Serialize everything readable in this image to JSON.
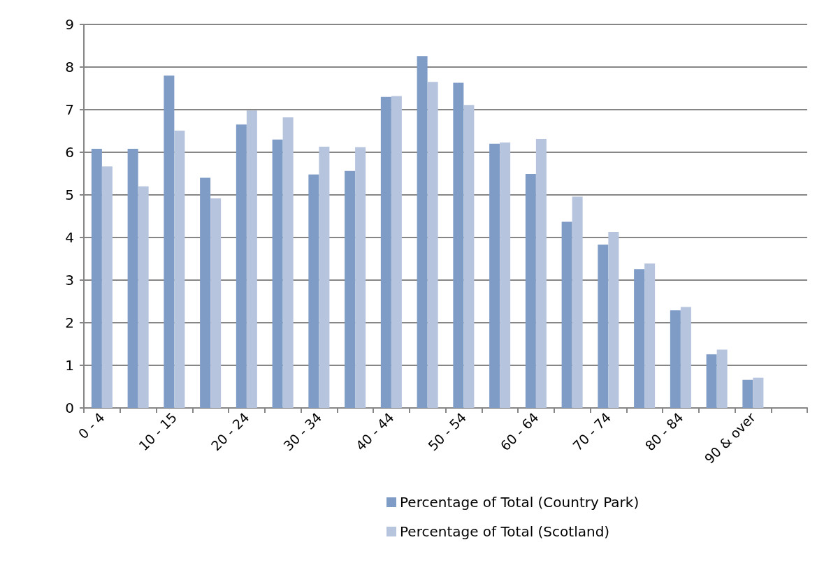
{
  "chart_data": {
    "type": "bar",
    "categories": [
      "0 - 4",
      null,
      "10 - 15",
      null,
      "20 - 24",
      null,
      "30 - 34",
      null,
      "40 - 44",
      null,
      "50 - 54",
      null,
      "60 - 64",
      null,
      "70 - 74",
      null,
      "80 - 84",
      null,
      "90 & over",
      null
    ],
    "series": [
      {
        "name": "Percentage of Total (Country Park)",
        "color": "#7f9cc7",
        "values": [
          6.08,
          6.08,
          7.8,
          5.4,
          6.65,
          6.3,
          5.48,
          5.56,
          7.3,
          8.26,
          7.63,
          6.2,
          5.49,
          4.37,
          3.83,
          3.26,
          2.29,
          1.26,
          0.66,
          null
        ]
      },
      {
        "name": "Percentage of Total (Scotland)",
        "color": "#b6c4de",
        "values": [
          5.67,
          5.2,
          6.51,
          4.92,
          6.98,
          6.82,
          6.13,
          6.12,
          7.32,
          7.65,
          7.11,
          6.23,
          6.31,
          4.96,
          4.13,
          3.39,
          2.37,
          1.37,
          0.71,
          null
        ]
      }
    ],
    "ylim": [
      0,
      9
    ],
    "yticks": [
      0,
      1,
      2,
      3,
      4,
      5,
      6,
      7,
      8,
      9
    ],
    "grid": "y",
    "legend": "bottom"
  }
}
